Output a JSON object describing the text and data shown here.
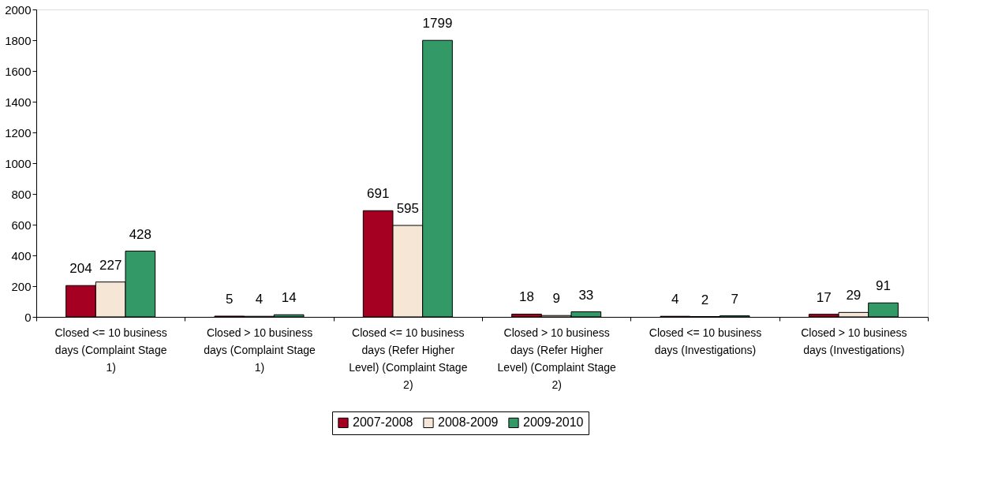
{
  "chart_data": {
    "type": "bar",
    "categories": [
      "Closed <= 10 business days (Complaint Stage 1)",
      "Closed > 10 business days (Complaint Stage 1)",
      "Closed <= 10 business days (Refer Higher Level) (Complaint Stage 2)",
      "Closed > 10 business days (Refer Higher Level) (Complaint Stage 2)",
      "Closed <= 10 business days (Investigations)",
      "Closed > 10 business days (Investigations)"
    ],
    "series": [
      {
        "name": "2007-2008",
        "color": "#a50021",
        "values": [
          204,
          5,
          691,
          18,
          4,
          17
        ]
      },
      {
        "name": "2008-2009",
        "color": "#f5e6d6",
        "values": [
          227,
          4,
          595,
          9,
          2,
          29
        ]
      },
      {
        "name": "2009-2010",
        "color": "#339966",
        "values": [
          428,
          14,
          1799,
          33,
          7,
          91
        ]
      }
    ],
    "ylim": [
      0,
      2000
    ],
    "yticks": [
      0,
      200,
      400,
      600,
      800,
      1000,
      1200,
      1400,
      1600,
      1800,
      2000
    ],
    "grid": false,
    "legend": "bottom",
    "data_labels": true
  }
}
